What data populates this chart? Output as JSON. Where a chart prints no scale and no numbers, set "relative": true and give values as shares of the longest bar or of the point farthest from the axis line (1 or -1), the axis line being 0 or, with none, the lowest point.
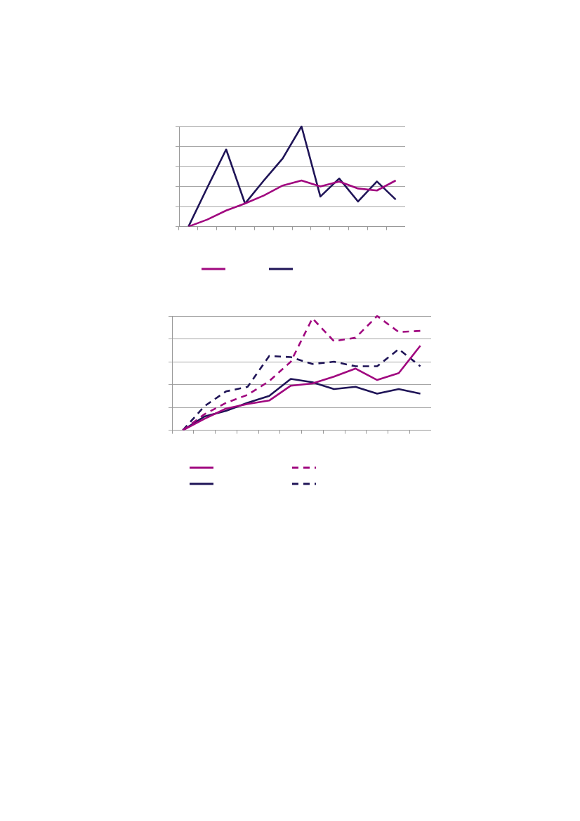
{
  "chart_data": [
    {
      "type": "line",
      "relative": true,
      "categories": [
        null,
        null,
        null,
        null,
        null,
        null,
        null,
        null,
        null,
        null,
        null,
        null
      ],
      "grid": "y",
      "marker": "none",
      "series": [
        {
          "color": "#a0077f",
          "line_style": "solid",
          "values": [
            0,
            0.07,
            0.16,
            0.23,
            0.31,
            0.41,
            0.46,
            0.4,
            0.45,
            0.38,
            0.36,
            0.46
          ]
        },
        {
          "color": "#1f1457",
          "line_style": "solid",
          "values": [
            0,
            0.39,
            0.77,
            0.23,
            0.46,
            0.68,
            1,
            0.3,
            0.48,
            0.25,
            0.45,
            0.27
          ]
        }
      ]
    },
    {
      "type": "line",
      "relative": true,
      "categories": [
        null,
        null,
        null,
        null,
        null,
        null,
        null,
        null,
        null,
        null,
        null,
        null
      ],
      "grid": "y",
      "marker": "none",
      "series": [
        {
          "color": "#a0077f",
          "line_style": "solid",
          "values": [
            0,
            0.1,
            0.19,
            0.23,
            0.26,
            0.39,
            0.41,
            0.47,
            0.54,
            0.44,
            0.5,
            0.74
          ]
        },
        {
          "color": "#a0077f",
          "line_style": "dashed",
          "values": [
            0,
            0.14,
            0.24,
            0.31,
            0.43,
            0.6,
            0.98,
            0.78,
            0.81,
            1,
            0.86,
            0.87
          ]
        },
        {
          "color": "#1f1457",
          "line_style": "solid",
          "values": [
            0,
            0.12,
            0.17,
            0.24,
            0.3,
            0.45,
            0.42,
            0.36,
            0.38,
            0.32,
            0.36,
            0.32
          ]
        },
        {
          "color": "#1f1457",
          "line_style": "dashed",
          "values": [
            0,
            0.21,
            0.34,
            0.38,
            0.65,
            0.64,
            0.58,
            0.6,
            0.56,
            0.56,
            0.71,
            0.56
          ]
        }
      ]
    }
  ]
}
